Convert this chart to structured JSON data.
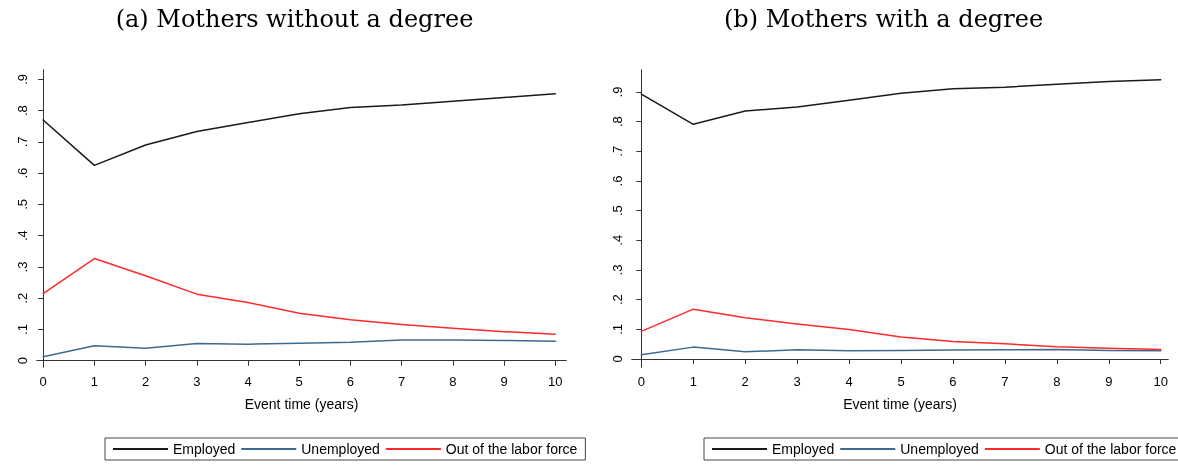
{
  "chart_data": [
    {
      "type": "line",
      "title": "(a) Mothers without a degree",
      "xlabel": "Event time (years)",
      "x": [
        0,
        1,
        2,
        3,
        4,
        5,
        6,
        7,
        8,
        9,
        10
      ],
      "xlim": [
        -0.12,
        10.21
      ],
      "xticks": [
        0,
        1,
        2,
        3,
        4,
        5,
        6,
        7,
        8,
        9,
        10
      ],
      "ylim": [
        -0.02,
        0.93
      ],
      "yticks": [
        0,
        {
          "value": 0.1,
          "label": ".1"
        },
        {
          "value": 0.2,
          "label": ".2"
        },
        {
          "value": 0.3,
          "label": ".3"
        },
        {
          "value": 0.4,
          "label": ".4"
        },
        {
          "value": 0.5,
          "label": ".5"
        },
        {
          "value": 0.6,
          "label": ".6"
        },
        {
          "value": 0.7,
          "label": ".7"
        },
        {
          "value": 0.8,
          "label": ".8"
        },
        {
          "value": 0.9,
          "label": ".9"
        }
      ],
      "grid": false,
      "legend": "bottom",
      "marker": "none",
      "line_style": "solid",
      "series": [
        {
          "name": "Employed",
          "color": "#1a1a1a",
          "values": [
            0.77,
            0.625,
            0.69,
            0.733,
            0.762,
            0.79,
            0.81,
            0.818,
            0.83,
            0.842,
            0.854
          ]
        },
        {
          "name": "Unemployed",
          "color": "#3e6a8e",
          "values": [
            0.013,
            0.048,
            0.04,
            0.055,
            0.053,
            0.056,
            0.059,
            0.066,
            0.066,
            0.065,
            0.062
          ]
        },
        {
          "name": "Out of the labor force",
          "color": "#ff2a2a",
          "values": [
            0.215,
            0.327,
            0.272,
            0.213,
            0.186,
            0.152,
            0.131,
            0.116,
            0.104,
            0.093,
            0.085
          ]
        }
      ]
    },
    {
      "type": "line",
      "title": "(b) Mothers with a degree",
      "xlabel": "Event time (years)",
      "x": [
        0,
        1,
        2,
        3,
        4,
        5,
        6,
        7,
        8,
        9,
        10
      ],
      "xlim": [
        -0.18,
        10.14
      ],
      "xticks": [
        0,
        1,
        2,
        3,
        4,
        5,
        6,
        7,
        8,
        9,
        10
      ],
      "ylim": [
        -0.027,
        0.974
      ],
      "yticks": [
        0,
        {
          "value": 0.1,
          "label": ".1"
        },
        {
          "value": 0.2,
          "label": ".2"
        },
        {
          "value": 0.3,
          "label": ".3"
        },
        {
          "value": 0.4,
          "label": ".4"
        },
        {
          "value": 0.5,
          "label": ".5"
        },
        {
          "value": 0.6,
          "label": ".6"
        },
        {
          "value": 0.7,
          "label": ".7"
        },
        {
          "value": 0.8,
          "label": ".8"
        },
        {
          "value": 0.9,
          "label": ".9"
        }
      ],
      "grid": false,
      "legend": "bottom",
      "marker": "none",
      "line_style": "solid",
      "series": [
        {
          "name": "Employed",
          "color": "#1a1a1a",
          "values": [
            0.893,
            0.791,
            0.836,
            0.849,
            0.872,
            0.896,
            0.911,
            0.916,
            0.926,
            0.935,
            0.941
          ]
        },
        {
          "name": "Unemployed",
          "color": "#3e6a8e",
          "values": [
            0.014,
            0.04,
            0.024,
            0.031,
            0.028,
            0.029,
            0.03,
            0.031,
            0.032,
            0.029,
            0.028
          ]
        },
        {
          "name": "Out of the labor force",
          "color": "#ff2a2a",
          "values": [
            0.093,
            0.168,
            0.139,
            0.118,
            0.099,
            0.074,
            0.059,
            0.051,
            0.041,
            0.036,
            0.032
          ]
        }
      ]
    }
  ]
}
